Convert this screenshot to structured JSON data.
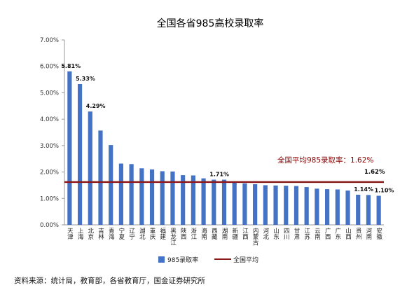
{
  "chart_data": {
    "type": "bar",
    "title": "全国各省985高校录取率",
    "categories": [
      "天津",
      "上海",
      "北京",
      "吉林",
      "青海",
      "宁夏",
      "辽宁",
      "湖北",
      "重庆",
      "福建",
      "黑龙江",
      "陕西",
      "浙江",
      "海南",
      "西藏",
      "湖南",
      "新疆",
      "江西",
      "内蒙古",
      "河北",
      "山东",
      "四川",
      "甘肃",
      "江苏",
      "云南",
      "广西",
      "广东",
      "山西",
      "贵州",
      "河南",
      "安徽"
    ],
    "series": [
      {
        "name": "985录取率",
        "color": "#4472c4",
        "values": [
          5.81,
          5.33,
          4.29,
          3.57,
          3.02,
          2.32,
          2.3,
          2.14,
          2.1,
          2.03,
          2.02,
          1.88,
          1.87,
          1.76,
          1.71,
          1.71,
          1.63,
          1.57,
          1.54,
          1.5,
          1.49,
          1.48,
          1.47,
          1.43,
          1.37,
          1.35,
          1.34,
          1.3,
          1.14,
          1.13,
          1.1
        ]
      }
    ],
    "average": {
      "name": "全国平均",
      "value": 1.62,
      "color": "#8b1a1a"
    },
    "labels": {
      "0": "5.81%",
      "1": "5.33%",
      "2": "4.29%",
      "14": "1.71%",
      "28": "1.14%",
      "30": "1.10%"
    },
    "yticks": [
      "0.00%",
      "1.00%",
      "2.00%",
      "3.00%",
      "4.00%",
      "5.00%",
      "6.00%",
      "7.00%"
    ],
    "ylim": [
      0,
      7
    ],
    "average_annotation": "全国平均985录取率：1.62%",
    "average_value_label": "1.62%",
    "legend": {
      "bars": "985录取率",
      "line": "全国平均"
    },
    "grid": false
  },
  "source_note": "资料来源：统计局，教育部，各省教育厅，国金证券研究所"
}
